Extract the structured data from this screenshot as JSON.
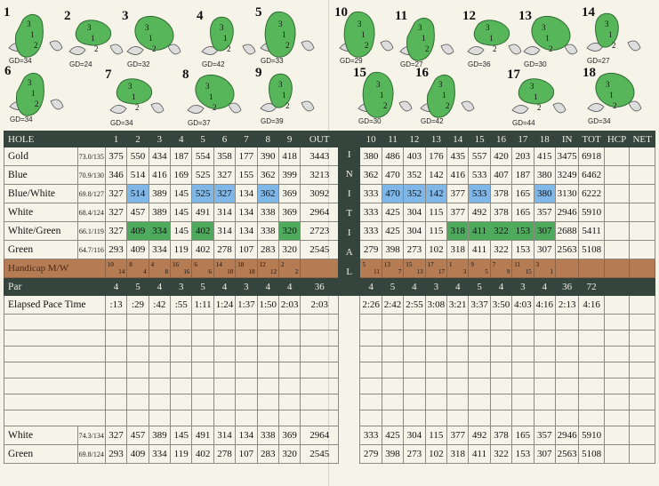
{
  "holes_front": [
    "1",
    "2",
    "3",
    "4",
    "5",
    "6",
    "7",
    "8",
    "9"
  ],
  "holes_back": [
    "10",
    "11",
    "12",
    "13",
    "14",
    "15",
    "16",
    "17",
    "18"
  ],
  "greens": [
    {
      "n": "1",
      "gd": "GD=34"
    },
    {
      "n": "2",
      "gd": "GD=24"
    },
    {
      "n": "3",
      "gd": "GD=32"
    },
    {
      "n": "4",
      "gd": "GD=42"
    },
    {
      "n": "5",
      "gd": "GD=33"
    },
    {
      "n": "6",
      "gd": "GD=34"
    },
    {
      "n": "7",
      "gd": "GD=34"
    },
    {
      "n": "8",
      "gd": "GD=37"
    },
    {
      "n": "9",
      "gd": "GD=39"
    },
    {
      "n": "10",
      "gd": "GD=29"
    },
    {
      "n": "11",
      "gd": "GD=27"
    },
    {
      "n": "12",
      "gd": "GD=36"
    },
    {
      "n": "13",
      "gd": "GD=30"
    },
    {
      "n": "14",
      "gd": "GD=27"
    },
    {
      "n": "15",
      "gd": "GD=30"
    },
    {
      "n": "16",
      "gd": "GD=42"
    },
    {
      "n": "17",
      "gd": "GD=44"
    },
    {
      "n": "18",
      "gd": "GD=34"
    }
  ],
  "header": {
    "hole": "HOLE",
    "out": "OUT",
    "in": "IN",
    "tot": "TOT",
    "hcp": "HCP",
    "net": "NET"
  },
  "initial_letters": [
    "I",
    "N",
    "I",
    "T",
    "I",
    "A",
    "L"
  ],
  "tees": [
    {
      "name": "Gold",
      "rating": "73.0/135",
      "front": [
        "375",
        "550",
        "434",
        "187",
        "554",
        "358",
        "177",
        "390",
        "418"
      ],
      "out": "3443",
      "back": [
        "380",
        "486",
        "403",
        "176",
        "435",
        "557",
        "420",
        "203",
        "415"
      ],
      "in": "3475",
      "tot": "6918"
    },
    {
      "name": "Blue",
      "rating": "70.9/130",
      "front": [
        "346",
        "514",
        "416",
        "169",
        "525",
        "327",
        "155",
        "362",
        "399"
      ],
      "out": "3213",
      "back": [
        "362",
        "470",
        "352",
        "142",
        "416",
        "533",
        "407",
        "187",
        "380"
      ],
      "in": "3249",
      "tot": "6462"
    },
    {
      "name": "Blue/White",
      "rating": "69.8/127",
      "front": [
        "327",
        "514",
        "389",
        "145",
        "525",
        "327",
        "134",
        "362",
        "369"
      ],
      "out": "3092",
      "back": [
        "333",
        "470",
        "352",
        "142",
        "377",
        "533",
        "378",
        "165",
        "380"
      ],
      "in": "3130",
      "tot": "6222"
    },
    {
      "name": "White",
      "rating": "68.4/124",
      "front": [
        "327",
        "457",
        "389",
        "145",
        "491",
        "314",
        "134",
        "338",
        "369"
      ],
      "out": "2964",
      "back": [
        "333",
        "425",
        "304",
        "115",
        "377",
        "492",
        "378",
        "165",
        "357"
      ],
      "in": "2946",
      "tot": "5910"
    },
    {
      "name": "White/Green",
      "rating": "66.1/119",
      "front": [
        "327",
        "409",
        "334",
        "145",
        "402",
        "314",
        "134",
        "338",
        "320"
      ],
      "out": "2723",
      "back": [
        "333",
        "425",
        "304",
        "115",
        "318",
        "411",
        "322",
        "153",
        "307"
      ],
      "in": "2688",
      "tot": "5411"
    },
    {
      "name": "Green",
      "rating": "64.7/116",
      "front": [
        "293",
        "409",
        "334",
        "119",
        "402",
        "278",
        "107",
        "283",
        "320"
      ],
      "out": "2545",
      "back": [
        "279",
        "398",
        "273",
        "102",
        "318",
        "411",
        "322",
        "153",
        "307"
      ],
      "in": "2563",
      "tot": "5108"
    }
  ],
  "highlight_colors": {
    "blue": "#7fb7e8",
    "green": "#4eab5e",
    "handicap_row": "#b57c54",
    "header_bar": "#35453d"
  },
  "handicap": {
    "label": "Handicap M/W",
    "front": [
      [
        "10",
        "14"
      ],
      [
        "8",
        "4"
      ],
      [
        "4",
        "8"
      ],
      [
        "16",
        "16"
      ],
      [
        "6",
        "6"
      ],
      [
        "14",
        "10"
      ],
      [
        "18",
        "18"
      ],
      [
        "12",
        "12"
      ],
      [
        "2",
        "2"
      ]
    ],
    "back": [
      [
        "5",
        "11"
      ],
      [
        "13",
        "7"
      ],
      [
        "15",
        "13"
      ],
      [
        "17",
        "17"
      ],
      [
        "1",
        "3"
      ],
      [
        "9",
        "5"
      ],
      [
        "7",
        "9"
      ],
      [
        "11",
        "15"
      ],
      [
        "3",
        "1"
      ]
    ]
  },
  "par": {
    "label": "Par",
    "front": [
      "4",
      "5",
      "4",
      "3",
      "5",
      "4",
      "3",
      "4",
      "4"
    ],
    "out": "36",
    "back": [
      "4",
      "5",
      "4",
      "3",
      "4",
      "5",
      "4",
      "3",
      "4"
    ],
    "in": "36",
    "tot": "72"
  },
  "elapsed": {
    "label": "Elapsed Pace Time",
    "front": [
      ":13",
      ":29",
      ":42",
      ":55",
      "1:11",
      "1:24",
      "1:37",
      "1:50",
      "2:03"
    ],
    "out": "2:03",
    "back": [
      "2:26",
      "2:42",
      "2:55",
      "3:08",
      "3:21",
      "3:37",
      "3:50",
      "4:03",
      "4:16"
    ],
    "in": "2:13",
    "tot": "4:16"
  },
  "footer_tees": [
    {
      "name": "White",
      "rating": "74.3/134",
      "front": [
        "327",
        "457",
        "389",
        "145",
        "491",
        "314",
        "134",
        "338",
        "369"
      ],
      "out": "2964",
      "back": [
        "333",
        "425",
        "304",
        "115",
        "377",
        "492",
        "378",
        "165",
        "357"
      ],
      "in": "2946",
      "tot": "5910"
    },
    {
      "name": "Green",
      "rating": "69.8/124",
      "front": [
        "293",
        "409",
        "334",
        "119",
        "402",
        "278",
        "107",
        "283",
        "320"
      ],
      "out": "2545",
      "back": [
        "279",
        "398",
        "273",
        "102",
        "318",
        "411",
        "322",
        "153",
        "307"
      ],
      "in": "2563",
      "tot": "5108"
    }
  ]
}
